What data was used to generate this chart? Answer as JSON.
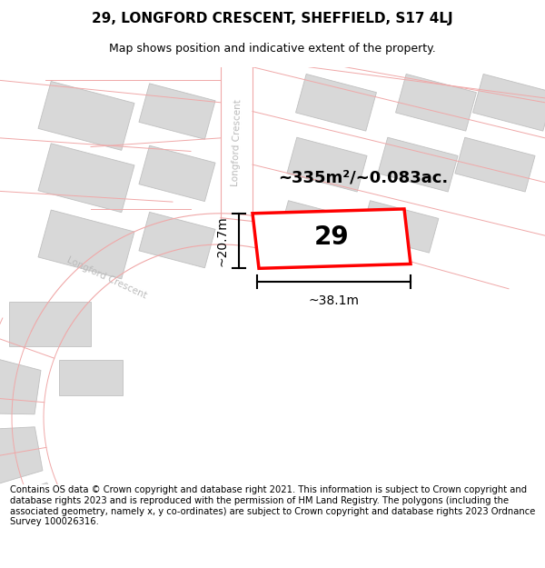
{
  "title": "29, LONGFORD CRESCENT, SHEFFIELD, S17 4LJ",
  "subtitle": "Map shows position and indicative extent of the property.",
  "footer": "Contains OS data © Crown copyright and database right 2021. This information is subject to Crown copyright and database rights 2023 and is reproduced with the permission of HM Land Registry. The polygons (including the associated geometry, namely x, y co-ordinates) are subject to Crown copyright and database rights 2023 Ordnance Survey 100026316.",
  "area_label": "~335m²/~0.083ac.",
  "width_label": "~38.1m",
  "height_label": "~20.7m",
  "house_number": "29",
  "plot_color": "#ff0000",
  "building_color": "#d8d8d8",
  "building_edge": "#c0c0c0",
  "road_line_color": "#f0a8a8",
  "bg_color": "#ffffff",
  "road_bg": "#f9f5f5",
  "title_fontsize": 11,
  "subtitle_fontsize": 9,
  "footer_fontsize": 7.2
}
